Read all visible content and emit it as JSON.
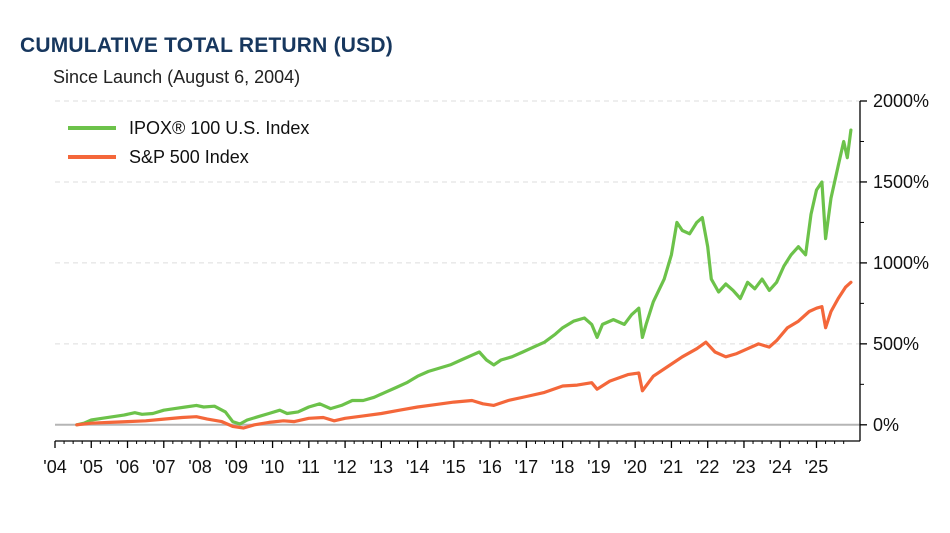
{
  "colors": {
    "ipox": "#6cc24a",
    "sp500": "#f4673a",
    "title": "#17375e"
  },
  "chart_data": {
    "type": "line",
    "title": "CUMULATIVE TOTAL RETURN (USD)",
    "subtitle": "Since Launch (August 6, 2004)",
    "xlabel": "",
    "ylabel": "",
    "xlim": [
      2004.0,
      2026.2
    ],
    "ylim": [
      -100,
      2000
    ],
    "x_ticks": [
      {
        "x": 2004,
        "label": "'04"
      },
      {
        "x": 2005,
        "label": "'05"
      },
      {
        "x": 2006,
        "label": "'06"
      },
      {
        "x": 2007,
        "label": "'07"
      },
      {
        "x": 2008,
        "label": "'08"
      },
      {
        "x": 2009,
        "label": "'09"
      },
      {
        "x": 2010,
        "label": "'10"
      },
      {
        "x": 2011,
        "label": "'11"
      },
      {
        "x": 2012,
        "label": "'12"
      },
      {
        "x": 2013,
        "label": "'13"
      },
      {
        "x": 2014,
        "label": "'14"
      },
      {
        "x": 2015,
        "label": "'15"
      },
      {
        "x": 2016,
        "label": "'16"
      },
      {
        "x": 2017,
        "label": "'17"
      },
      {
        "x": 2018,
        "label": "'18"
      },
      {
        "x": 2019,
        "label": "'19"
      },
      {
        "x": 2020,
        "label": "'20"
      },
      {
        "x": 2021,
        "label": "'21"
      },
      {
        "x": 2022,
        "label": "'22"
      },
      {
        "x": 2023,
        "label": "'23"
      },
      {
        "x": 2024,
        "label": "'24"
      },
      {
        "x": 2025,
        "label": "'25"
      }
    ],
    "y_ticks": [
      {
        "y": 0,
        "label": "0%"
      },
      {
        "y": 500,
        "label": "500%"
      },
      {
        "y": 1000,
        "label": "1000%"
      },
      {
        "y": 1500,
        "label": "1500%"
      },
      {
        "y": 2000,
        "label": "2000%"
      }
    ],
    "grid": "horizontal dashed",
    "legend_position": "top-left",
    "series": [
      {
        "name": "IPOX® 100 U.S. Index",
        "points": [
          [
            2004.6,
            0
          ],
          [
            2004.8,
            10
          ],
          [
            2005.0,
            30
          ],
          [
            2005.3,
            40
          ],
          [
            2005.6,
            50
          ],
          [
            2005.9,
            60
          ],
          [
            2006.2,
            75
          ],
          [
            2006.4,
            65
          ],
          [
            2006.7,
            70
          ],
          [
            2007.0,
            90
          ],
          [
            2007.3,
            100
          ],
          [
            2007.6,
            110
          ],
          [
            2007.9,
            120
          ],
          [
            2008.1,
            110
          ],
          [
            2008.4,
            115
          ],
          [
            2008.7,
            80
          ],
          [
            2008.9,
            20
          ],
          [
            2009.1,
            5
          ],
          [
            2009.3,
            30
          ],
          [
            2009.6,
            50
          ],
          [
            2009.9,
            70
          ],
          [
            2010.2,
            90
          ],
          [
            2010.4,
            70
          ],
          [
            2010.7,
            80
          ],
          [
            2011.0,
            110
          ],
          [
            2011.3,
            130
          ],
          [
            2011.6,
            100
          ],
          [
            2011.9,
            120
          ],
          [
            2012.2,
            150
          ],
          [
            2012.5,
            150
          ],
          [
            2012.8,
            170
          ],
          [
            2013.1,
            200
          ],
          [
            2013.4,
            230
          ],
          [
            2013.7,
            260
          ],
          [
            2014.0,
            300
          ],
          [
            2014.3,
            330
          ],
          [
            2014.6,
            350
          ],
          [
            2014.9,
            370
          ],
          [
            2015.2,
            400
          ],
          [
            2015.5,
            430
          ],
          [
            2015.7,
            450
          ],
          [
            2015.9,
            400
          ],
          [
            2016.1,
            370
          ],
          [
            2016.3,
            400
          ],
          [
            2016.6,
            420
          ],
          [
            2016.9,
            450
          ],
          [
            2017.2,
            480
          ],
          [
            2017.5,
            510
          ],
          [
            2017.8,
            560
          ],
          [
            2018.0,
            600
          ],
          [
            2018.3,
            640
          ],
          [
            2018.6,
            660
          ],
          [
            2018.8,
            620
          ],
          [
            2018.95,
            540
          ],
          [
            2019.1,
            620
          ],
          [
            2019.4,
            650
          ],
          [
            2019.7,
            620
          ],
          [
            2019.9,
            680
          ],
          [
            2020.1,
            720
          ],
          [
            2020.2,
            540
          ],
          [
            2020.3,
            620
          ],
          [
            2020.5,
            760
          ],
          [
            2020.8,
            900
          ],
          [
            2021.0,
            1050
          ],
          [
            2021.15,
            1250
          ],
          [
            2021.3,
            1200
          ],
          [
            2021.5,
            1180
          ],
          [
            2021.7,
            1250
          ],
          [
            2021.85,
            1280
          ],
          [
            2022.0,
            1100
          ],
          [
            2022.1,
            900
          ],
          [
            2022.3,
            820
          ],
          [
            2022.5,
            870
          ],
          [
            2022.7,
            830
          ],
          [
            2022.9,
            780
          ],
          [
            2023.1,
            880
          ],
          [
            2023.3,
            840
          ],
          [
            2023.5,
            900
          ],
          [
            2023.7,
            830
          ],
          [
            2023.9,
            880
          ],
          [
            2024.1,
            980
          ],
          [
            2024.3,
            1050
          ],
          [
            2024.5,
            1100
          ],
          [
            2024.7,
            1050
          ],
          [
            2024.85,
            1300
          ],
          [
            2025.0,
            1450
          ],
          [
            2025.15,
            1500
          ],
          [
            2025.25,
            1150
          ],
          [
            2025.4,
            1400
          ],
          [
            2025.6,
            1600
          ],
          [
            2025.75,
            1750
          ],
          [
            2025.85,
            1650
          ],
          [
            2025.95,
            1820
          ]
        ]
      },
      {
        "name": "S&P 500 Index",
        "points": [
          [
            2004.6,
            0
          ],
          [
            2005.0,
            10
          ],
          [
            2005.5,
            15
          ],
          [
            2006.0,
            20
          ],
          [
            2006.5,
            25
          ],
          [
            2007.0,
            35
          ],
          [
            2007.5,
            45
          ],
          [
            2007.9,
            50
          ],
          [
            2008.2,
            35
          ],
          [
            2008.6,
            20
          ],
          [
            2008.9,
            -10
          ],
          [
            2009.2,
            -20
          ],
          [
            2009.5,
            0
          ],
          [
            2009.9,
            15
          ],
          [
            2010.3,
            25
          ],
          [
            2010.6,
            20
          ],
          [
            2011.0,
            40
          ],
          [
            2011.4,
            45
          ],
          [
            2011.7,
            25
          ],
          [
            2012.0,
            40
          ],
          [
            2012.5,
            55
          ],
          [
            2013.0,
            70
          ],
          [
            2013.5,
            90
          ],
          [
            2014.0,
            110
          ],
          [
            2014.5,
            125
          ],
          [
            2015.0,
            140
          ],
          [
            2015.5,
            150
          ],
          [
            2015.8,
            130
          ],
          [
            2016.1,
            120
          ],
          [
            2016.5,
            150
          ],
          [
            2017.0,
            175
          ],
          [
            2017.5,
            200
          ],
          [
            2018.0,
            240
          ],
          [
            2018.4,
            245
          ],
          [
            2018.8,
            260
          ],
          [
            2018.95,
            220
          ],
          [
            2019.3,
            270
          ],
          [
            2019.8,
            310
          ],
          [
            2020.1,
            320
          ],
          [
            2020.2,
            210
          ],
          [
            2020.5,
            300
          ],
          [
            2020.9,
            360
          ],
          [
            2021.3,
            420
          ],
          [
            2021.7,
            470
          ],
          [
            2021.95,
            510
          ],
          [
            2022.2,
            450
          ],
          [
            2022.5,
            420
          ],
          [
            2022.8,
            440
          ],
          [
            2023.0,
            460
          ],
          [
            2023.4,
            500
          ],
          [
            2023.7,
            480
          ],
          [
            2023.9,
            520
          ],
          [
            2024.2,
            600
          ],
          [
            2024.5,
            640
          ],
          [
            2024.8,
            700
          ],
          [
            2025.0,
            720
          ],
          [
            2025.15,
            730
          ],
          [
            2025.25,
            600
          ],
          [
            2025.4,
            700
          ],
          [
            2025.6,
            780
          ],
          [
            2025.8,
            850
          ],
          [
            2025.95,
            880
          ]
        ]
      }
    ]
  }
}
